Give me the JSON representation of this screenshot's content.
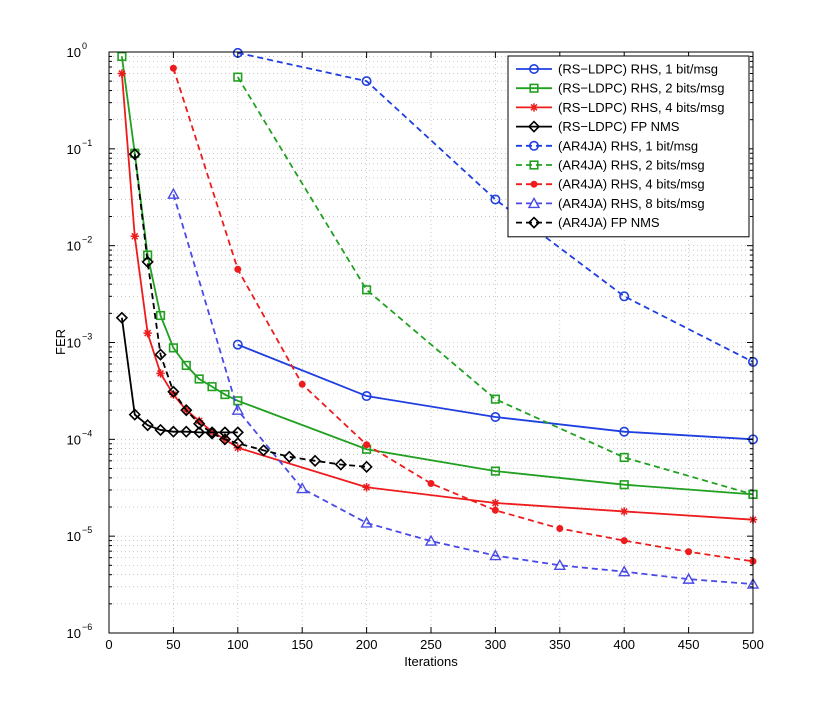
{
  "chart_data": {
    "type": "line",
    "title": "",
    "xlabel": "Iterations",
    "ylabel": "FER",
    "xlim": [
      0,
      500
    ],
    "ylim": [
      1e-06,
      1
    ],
    "yscale": "log",
    "grid": true,
    "legend_position": "top-right",
    "x_ticks": [
      0,
      50,
      100,
      150,
      200,
      250,
      300,
      350,
      400,
      450,
      500
    ],
    "x_tick_labels": [
      "0",
      "50",
      "100",
      "150",
      "200",
      "250",
      "300",
      "350",
      "400",
      "450",
      "500"
    ],
    "y_ticks": [
      {
        "value": 1,
        "base": "10",
        "exp": "0"
      },
      {
        "value": 0.1,
        "base": "10",
        "exp": "−1"
      },
      {
        "value": 0.01,
        "base": "10",
        "exp": "−2"
      },
      {
        "value": 0.001,
        "base": "10",
        "exp": "−3"
      },
      {
        "value": 0.0001,
        "base": "10",
        "exp": "−4"
      },
      {
        "value": 1e-05,
        "base": "10",
        "exp": "−5"
      },
      {
        "value": 1e-06,
        "base": "10",
        "exp": "−6"
      }
    ],
    "series": [
      {
        "name": "(RS−LDPC) RHS, 1 bit/msg",
        "color": "#1f3fe0",
        "dash": "solid",
        "marker": "circle",
        "x": [
          100,
          200,
          300,
          400,
          500
        ],
        "y": [
          0.00095,
          0.00028,
          0.00017,
          0.00012,
          0.0001
        ]
      },
      {
        "name": "(RS−LDPC) RHS, 2 bits/msg",
        "color": "#22a022",
        "dash": "solid",
        "marker": "square",
        "x": [
          10,
          20,
          30,
          40,
          50,
          60,
          70,
          80,
          90,
          100,
          200,
          300,
          400,
          500
        ],
        "y": [
          0.9,
          0.09,
          0.008,
          0.0019,
          0.00088,
          0.00058,
          0.00042,
          0.00035,
          0.00029,
          0.00025,
          7.9e-05,
          4.7e-05,
          3.4e-05,
          2.7e-05
        ]
      },
      {
        "name": "(RS−LDPC) RHS, 4 bits/msg",
        "color": "#ee1c1c",
        "dash": "solid",
        "marker": "star",
        "x": [
          10,
          20,
          30,
          40,
          50,
          60,
          70,
          80,
          90,
          100,
          200,
          300,
          400,
          500
        ],
        "y": [
          0.6,
          0.0125,
          0.00125,
          0.00048,
          0.00029,
          0.0002,
          0.000155,
          0.00012,
          0.0001,
          8.2e-05,
          3.2e-05,
          2.2e-05,
          1.8e-05,
          1.48e-05
        ]
      },
      {
        "name": "(RS−LDPC) FP NMS",
        "color": "#000000",
        "dash": "solid",
        "marker": "diamond",
        "x": [
          10,
          20,
          30,
          40,
          50,
          60,
          70,
          80,
          90,
          100
        ],
        "y": [
          0.0018,
          0.00018,
          0.00014,
          0.000125,
          0.00012,
          0.00012,
          0.000118,
          0.000118,
          0.000118,
          0.000118
        ]
      },
      {
        "name": "(AR4JA) RHS, 1 bit/msg",
        "color": "#1f3fe0",
        "dash": "dashed",
        "marker": "circle",
        "x": [
          100,
          200,
          300,
          400,
          500
        ],
        "y": [
          0.98,
          0.5,
          0.03,
          0.003,
          0.00063
        ]
      },
      {
        "name": "(AR4JA) RHS, 2 bits/msg",
        "color": "#22a022",
        "dash": "dashed",
        "marker": "square",
        "x": [
          100,
          200,
          300,
          400,
          500
        ],
        "y": [
          0.55,
          0.0035,
          0.00026,
          6.5e-05,
          2.7e-05
        ]
      },
      {
        "name": "(AR4JA) RHS, 4 bits/msg",
        "color": "#ee1c1c",
        "dash": "dashed",
        "marker": "dot",
        "x": [
          50,
          100,
          150,
          200,
          250,
          300,
          350,
          400,
          450,
          500
        ],
        "y": [
          0.68,
          0.0057,
          0.00037,
          8.8e-05,
          3.5e-05,
          1.85e-05,
          1.2e-05,
          9e-06,
          6.9e-06,
          5.5e-06
        ]
      },
      {
        "name": "(AR4JA) RHS, 8 bits/msg",
        "color": "#4a4ae8",
        "dash": "dashed",
        "marker": "triangle",
        "x": [
          50,
          100,
          150,
          200,
          250,
          300,
          350,
          400,
          450,
          500
        ],
        "y": [
          0.034,
          0.0002,
          3.1e-05,
          1.37e-05,
          8.9e-06,
          6.3e-06,
          5e-06,
          4.3e-06,
          3.6e-06,
          3.2e-06
        ]
      },
      {
        "name": "(AR4JA) FP NMS",
        "color": "#000000",
        "dash": "dashed",
        "marker": "diamond",
        "x": [
          20,
          30,
          40,
          50,
          60,
          70,
          80,
          90,
          100,
          120,
          140,
          160,
          180,
          200
        ],
        "y": [
          0.088,
          0.0068,
          0.00075,
          0.00031,
          0.0002,
          0.000145,
          0.000115,
          0.0001,
          9.1e-05,
          7.7e-05,
          6.6e-05,
          6e-05,
          5.5e-05,
          5.2e-05
        ]
      }
    ]
  }
}
